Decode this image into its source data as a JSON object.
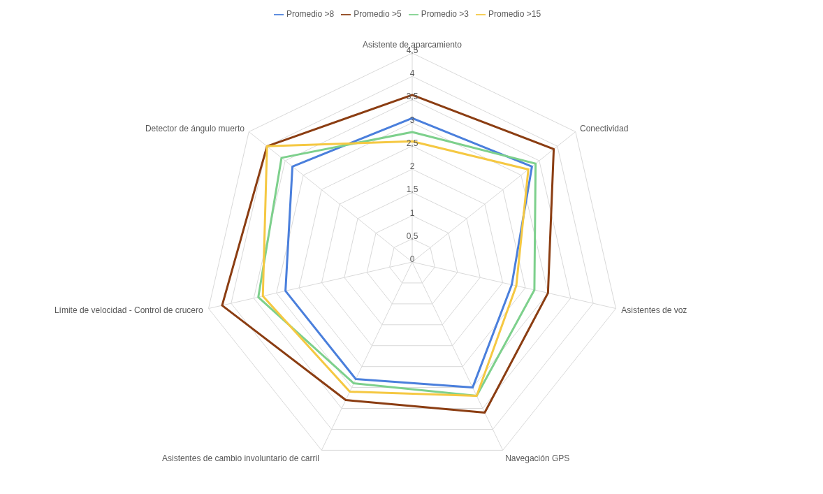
{
  "chart_data": {
    "type": "radar",
    "categories": [
      "Asistente de aparcamiento",
      "Conectividad",
      "Asistentes de voz",
      "Navegación GPS",
      "Asistentes de cambio involuntario de carril",
      "Límite de velocidad - Control de crucero",
      "Detector de ángulo muerto"
    ],
    "series": [
      {
        "name": "Promedio >8",
        "color": "#4a7fdc",
        "values": [
          3.1,
          3.3,
          2.2,
          3.0,
          2.8,
          2.8,
          3.3
        ]
      },
      {
        "name": "Promedio >5",
        "color": "#8b3d12",
        "values": [
          3.6,
          3.9,
          3.0,
          3.6,
          3.3,
          4.2,
          4.0
        ]
      },
      {
        "name": "Promedio >3",
        "color": "#7dd08c",
        "values": [
          2.8,
          3.4,
          2.7,
          3.2,
          2.9,
          3.4,
          3.6
        ]
      },
      {
        "name": "Promedio >15",
        "color": "#f5c842",
        "values": [
          2.6,
          3.2,
          2.3,
          3.2,
          3.1,
          3.3,
          4.0
        ]
      }
    ],
    "ylim": [
      0,
      4.5
    ],
    "yticks": [
      {
        "value": 0,
        "label": "0"
      },
      {
        "value": 0.5,
        "label": "0,5"
      },
      {
        "value": 1,
        "label": "1"
      },
      {
        "value": 1.5,
        "label": "1,5"
      },
      {
        "value": 2,
        "label": "2"
      },
      {
        "value": 2.5,
        "label": "2,5"
      },
      {
        "value": 3,
        "label": "3"
      },
      {
        "value": 3.5,
        "label": "3,5"
      },
      {
        "value": 4,
        "label": "4"
      },
      {
        "value": 4.5,
        "label": "4,5"
      }
    ],
    "grid": true,
    "legend": "top",
    "marker": "none",
    "line_style": "solid"
  }
}
